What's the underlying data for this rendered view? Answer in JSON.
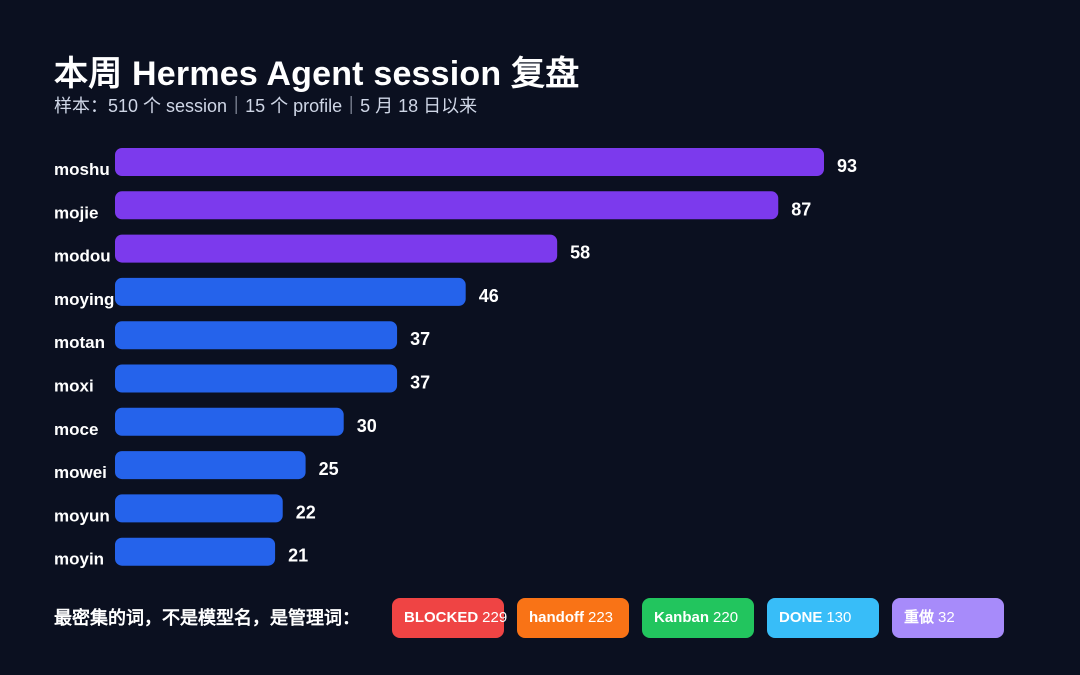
{
  "header": {
    "title": "本周 Hermes Agent session 复盘",
    "subtitle": "样本：510 个 session｜15 个 profile｜5 月 18 日以来"
  },
  "chart_data": {
    "type": "bar",
    "orientation": "horizontal",
    "title": "本周 Hermes Agent session 复盘",
    "xlabel": "",
    "ylabel": "",
    "grid": false,
    "categories": [
      "moshu",
      "mojie",
      "modou",
      "moying",
      "motan",
      "moxi",
      "moce",
      "mowei",
      "moyun",
      "moyin"
    ],
    "values": [
      93,
      87,
      58,
      46,
      37,
      37,
      30,
      25,
      22,
      21
    ],
    "colors": [
      "#7c3aed",
      "#7c3aed",
      "#7c3aed",
      "#2563eb",
      "#2563eb",
      "#2563eb",
      "#2563eb",
      "#2563eb",
      "#2563eb",
      "#2563eb"
    ],
    "xlim": [
      0,
      93
    ]
  },
  "footer": {
    "label": "最密集的词，不是模型名，是管理词：",
    "tags": [
      {
        "name": "BLOCKED",
        "count": "229",
        "color": "#ef4444"
      },
      {
        "name": "handoff",
        "count": "223",
        "color": "#f97316"
      },
      {
        "name": "Kanban",
        "count": "220",
        "color": "#22c55e"
      },
      {
        "name": "DONE",
        "count": "130",
        "color": "#38bdf8"
      },
      {
        "name": "重做",
        "count": "32",
        "color": "#a78bfa"
      }
    ]
  }
}
